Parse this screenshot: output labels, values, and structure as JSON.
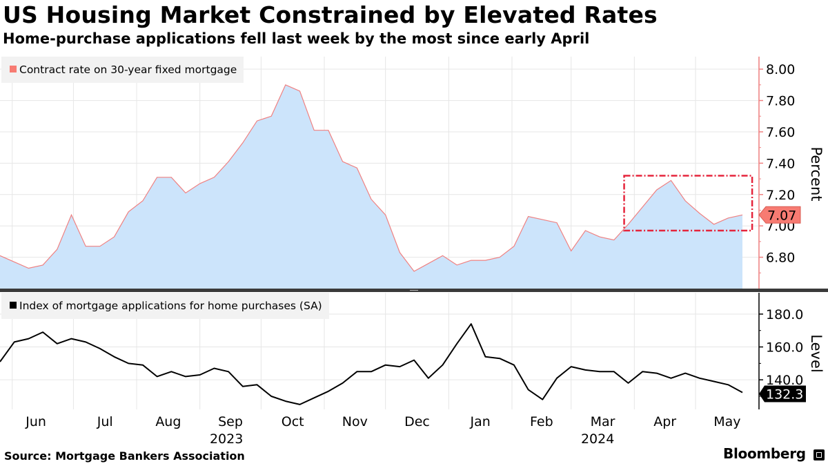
{
  "header": {
    "title": "US Housing Market Constrained by Elevated Rates",
    "subtitle": "Home-purchase applications fell last week by the most since early April"
  },
  "footer": {
    "source": "Source: Mortgage Bankers Association",
    "brand": "Bloomberg"
  },
  "colors": {
    "rate_line": "#f08080",
    "rate_fill": "#cce4fb",
    "rate_label_bg": "#f77b72",
    "highlight_box": "#e5243b",
    "index_line": "#000000"
  },
  "chart_data": [
    {
      "type": "area",
      "legend": "Contract rate on 30-year fixed mortgage",
      "ylabel": "Percent",
      "ylim": [
        6.6,
        8.08
      ],
      "yticks": [
        "8.00",
        "7.80",
        "7.60",
        "7.40",
        "7.20",
        "7.00",
        "6.80"
      ],
      "last_value_label": "7.07",
      "highlight": {
        "x_range": [
          "2024-03-27",
          "2024-05-22"
        ],
        "y_range": [
          6.97,
          7.32
        ]
      },
      "series": [
        {
          "x": [
            "2023-05-26",
            "2023-06-02",
            "2023-06-09",
            "2023-06-16",
            "2023-06-23",
            "2023-06-30",
            "2023-07-07",
            "2023-07-14",
            "2023-07-21",
            "2023-07-28",
            "2023-08-04",
            "2023-08-11",
            "2023-08-18",
            "2023-08-25",
            "2023-09-01",
            "2023-09-08",
            "2023-09-15",
            "2023-09-22",
            "2023-09-29",
            "2023-10-06",
            "2023-10-13",
            "2023-10-20",
            "2023-10-27",
            "2023-11-03",
            "2023-11-10",
            "2023-11-17",
            "2023-11-24",
            "2023-12-01",
            "2023-12-08",
            "2023-12-15",
            "2023-12-22",
            "2023-12-29",
            "2024-01-05",
            "2024-01-12",
            "2024-01-19",
            "2024-01-26",
            "2024-02-02",
            "2024-02-09",
            "2024-02-16",
            "2024-02-23",
            "2024-03-01",
            "2024-03-08",
            "2024-03-15",
            "2024-03-22",
            "2024-03-29",
            "2024-04-05",
            "2024-04-12",
            "2024-04-19",
            "2024-04-26",
            "2024-05-03",
            "2024-05-10",
            "2024-05-17",
            "2024-05-24"
          ],
          "values": [
            6.81,
            6.77,
            6.73,
            6.75,
            6.85,
            7.07,
            6.87,
            6.87,
            6.93,
            7.09,
            7.16,
            7.31,
            7.31,
            7.21,
            7.27,
            7.31,
            7.41,
            7.53,
            7.67,
            7.7,
            7.9,
            7.86,
            7.61,
            7.61,
            7.41,
            7.37,
            7.17,
            7.07,
            6.83,
            6.71,
            6.76,
            6.81,
            6.75,
            6.78,
            6.78,
            6.8,
            6.87,
            7.06,
            7.04,
            7.02,
            6.84,
            6.97,
            6.93,
            6.91,
            7.01,
            7.12,
            7.23,
            7.29,
            7.16,
            7.08,
            7.01,
            7.05,
            7.07
          ]
        }
      ]
    },
    {
      "type": "line",
      "legend": "Index of mortgage applications for home purchases (SA)",
      "ylabel": "Level",
      "ylim": [
        122,
        193
      ],
      "yticks": [
        "180.0",
        "160.0",
        "140.0"
      ],
      "last_value_label": "132.3",
      "categories": [
        "Jun",
        "Jul",
        "Aug",
        "Sep",
        "Oct",
        "Nov",
        "Dec",
        "Jan",
        "Feb",
        "Mar",
        "Apr",
        "May"
      ],
      "year_labels": [
        "2023",
        "2024"
      ],
      "series": [
        {
          "x": [
            "2023-05-26",
            "2023-06-02",
            "2023-06-09",
            "2023-06-16",
            "2023-06-23",
            "2023-06-30",
            "2023-07-07",
            "2023-07-14",
            "2023-07-21",
            "2023-07-28",
            "2023-08-04",
            "2023-08-11",
            "2023-08-18",
            "2023-08-25",
            "2023-09-01",
            "2023-09-08",
            "2023-09-15",
            "2023-09-22",
            "2023-09-29",
            "2023-10-06",
            "2023-10-13",
            "2023-10-20",
            "2023-10-27",
            "2023-11-03",
            "2023-11-10",
            "2023-11-17",
            "2023-11-24",
            "2023-12-01",
            "2023-12-08",
            "2023-12-15",
            "2023-12-22",
            "2023-12-29",
            "2024-01-05",
            "2024-01-12",
            "2024-01-19",
            "2024-01-26",
            "2024-02-02",
            "2024-02-09",
            "2024-02-16",
            "2024-02-23",
            "2024-03-01",
            "2024-03-08",
            "2024-03-15",
            "2024-03-22",
            "2024-03-29",
            "2024-04-05",
            "2024-04-12",
            "2024-04-19",
            "2024-04-26",
            "2024-05-03",
            "2024-05-10",
            "2024-05-17",
            "2024-05-24"
          ],
          "values": [
            151,
            163,
            165,
            169,
            162,
            165,
            163,
            159,
            154,
            150,
            149,
            142,
            145,
            142,
            143,
            147,
            145,
            136,
            137,
            130,
            127,
            125,
            129,
            133,
            138,
            145,
            145,
            149,
            148,
            152,
            141,
            149,
            162,
            174,
            154,
            153,
            149,
            134,
            128,
            141,
            148,
            146,
            145,
            145,
            138,
            145,
            144,
            141,
            144,
            141,
            139,
            137,
            132.3
          ]
        }
      ]
    }
  ]
}
